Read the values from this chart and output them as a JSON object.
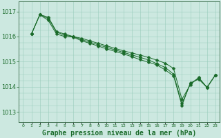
{
  "background_color": "#cce8e0",
  "grid_color": "#99ccbb",
  "line_color": "#1a6b2a",
  "xlabel": "Graphe pression niveau de la mer (hPa)",
  "xlabel_fontsize": 7,
  "yticks": [
    1013,
    1014,
    1015,
    1016,
    1017
  ],
  "ytick_fontsize": 6,
  "xtick_fontsize": 4.5,
  "xlim": [
    -0.5,
    23.5
  ],
  "ylim": [
    1012.6,
    1017.4
  ],
  "series": [
    [
      1016.1,
      1016.87,
      1016.78,
      1016.2,
      1016.1,
      1016.0,
      1015.93,
      1015.83,
      1015.73,
      1015.63,
      1015.53,
      1015.43,
      1015.35,
      1015.26,
      1015.17,
      1015.06,
      1014.94,
      1014.73,
      1013.5,
      1014.08,
      1014.37,
      1013.97,
      1014.47
    ],
    [
      1016.1,
      1016.87,
      1016.72,
      1016.18,
      1016.05,
      1016.0,
      1015.88,
      1015.78,
      1015.67,
      1015.57,
      1015.47,
      1015.37,
      1015.27,
      1015.17,
      1015.07,
      1014.92,
      1014.77,
      1014.5,
      1013.32,
      1014.12,
      1014.35,
      1013.98,
      1014.47
    ],
    [
      1016.1,
      1016.87,
      1016.65,
      1016.1,
      1016.0,
      1015.98,
      1015.83,
      1015.73,
      1015.62,
      1015.51,
      1015.41,
      1015.31,
      1015.2,
      1015.08,
      1014.98,
      1014.87,
      1014.67,
      1014.43,
      1013.25,
      1014.15,
      1014.3,
      1013.97,
      1014.47
    ]
  ],
  "xtick_labels": [
    "0",
    "1",
    "2",
    "3",
    "4",
    "5",
    "6",
    "7",
    "8",
    "9",
    "10",
    "11",
    "12",
    "13",
    "14",
    "15",
    "16",
    "17",
    "18",
    "19",
    "20",
    "21",
    "22",
    "23"
  ],
  "linewidth": 0.7,
  "markersize": 2.5,
  "spine_color": "#336644"
}
